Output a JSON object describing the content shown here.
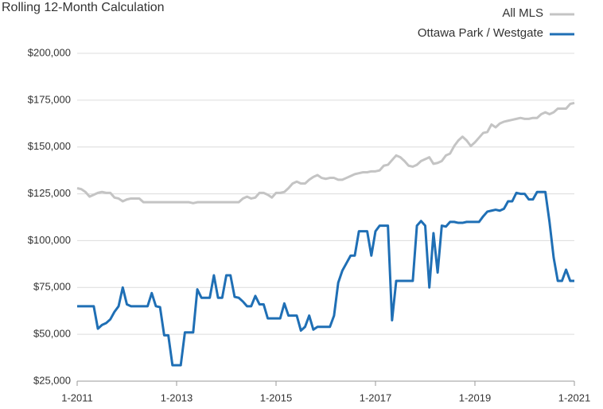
{
  "chart_data": {
    "type": "line",
    "title": "Rolling 12-Month Calculation",
    "x": [
      0,
      1,
      2,
      3,
      4,
      5,
      6,
      7,
      8,
      9,
      10,
      11,
      12,
      13,
      14,
      15,
      16,
      17,
      18,
      19,
      20,
      21,
      22,
      23,
      24,
      25,
      26,
      27,
      28,
      29,
      30,
      31,
      32,
      33,
      34,
      35,
      36,
      37,
      38,
      39,
      40,
      41,
      42,
      43,
      44,
      45,
      46,
      47,
      48,
      49,
      50,
      51,
      52,
      53,
      54,
      55,
      56,
      57,
      58,
      59,
      60,
      61,
      62,
      63,
      64,
      65,
      66,
      67,
      68,
      69,
      70,
      71,
      72,
      73,
      74,
      75,
      76,
      77,
      78,
      79,
      80,
      81,
      82,
      83,
      84,
      85,
      86,
      87,
      88,
      89,
      90,
      91,
      92,
      93,
      94,
      95,
      96,
      97,
      98,
      99,
      100,
      101,
      102,
      103,
      104,
      105,
      106,
      107,
      108,
      109,
      110,
      111,
      112,
      113,
      114,
      115,
      116,
      117,
      118,
      119,
      120
    ],
    "series": [
      {
        "name": "All MLS",
        "color": "#c4c4c4",
        "values": [
          128000,
          127500,
          126000,
          123500,
          124500,
          125500,
          126000,
          125500,
          125500,
          123000,
          122500,
          121000,
          122000,
          122500,
          122500,
          122500,
          120500,
          120500,
          120500,
          120500,
          120500,
          120500,
          120500,
          120500,
          120500,
          120500,
          120500,
          120500,
          120000,
          120500,
          120500,
          120500,
          120500,
          120500,
          120500,
          120500,
          120500,
          120500,
          120500,
          120500,
          122500,
          123500,
          122500,
          123000,
          125500,
          125500,
          124500,
          123000,
          125500,
          125500,
          126000,
          128000,
          130500,
          131500,
          130500,
          130500,
          132500,
          134000,
          135000,
          133500,
          133000,
          133500,
          133500,
          132500,
          132500,
          133500,
          134500,
          135500,
          136000,
          136500,
          136500,
          137000,
          137000,
          137500,
          140000,
          140500,
          143000,
          145500,
          144500,
          142500,
          140000,
          139500,
          140500,
          142500,
          143500,
          144500,
          141000,
          141500,
          142500,
          145500,
          146500,
          150500,
          153500,
          155500,
          153500,
          150500,
          152500,
          155000,
          157500,
          158000,
          162000,
          160500,
          162500,
          163500,
          164000,
          164500,
          165000,
          165500,
          165000,
          165000,
          165500,
          165500,
          167500,
          168500,
          167500,
          168500,
          170500,
          170500,
          170500,
          173000,
          173500
        ]
      },
      {
        "name": "Ottawa Park / Westgate",
        "color": "#1f6fb5",
        "values": [
          65000,
          65000,
          65000,
          65000,
          65000,
          53000,
          55000,
          56000,
          58000,
          62000,
          65000,
          75000,
          66000,
          65000,
          65000,
          65000,
          65000,
          65000,
          72000,
          65000,
          64500,
          49500,
          49500,
          33500,
          33500,
          33500,
          51000,
          51000,
          51000,
          74000,
          69500,
          69500,
          69500,
          81500,
          69500,
          69500,
          81500,
          81500,
          70000,
          69500,
          67500,
          65000,
          65000,
          70500,
          66000,
          66000,
          58500,
          58500,
          58500,
          58500,
          66500,
          60000,
          60000,
          60000,
          52000,
          54000,
          60000,
          52500,
          54000,
          54000,
          54000,
          54000,
          60000,
          77500,
          84000,
          88000,
          92000,
          92000,
          105000,
          105000,
          105000,
          92000,
          105000,
          108000,
          108000,
          108000,
          57500,
          78500,
          78500,
          78500,
          78500,
          78500,
          108000,
          110500,
          108000,
          75000,
          104000,
          83000,
          108000,
          107500,
          110000,
          110000,
          109500,
          109500,
          110000,
          110000,
          110000,
          110000,
          113000,
          115500,
          116000,
          116500,
          116000,
          117000,
          121000,
          121000,
          125500,
          125000,
          125000,
          122000,
          122000,
          126000,
          126000,
          126000,
          110000,
          91000,
          78500,
          78500,
          84500,
          78500,
          78500
        ]
      }
    ],
    "xlim": [
      0,
      120
    ],
    "xticks": [
      {
        "value": 0,
        "label": "1-2011"
      },
      {
        "value": 24,
        "label": "1-2013"
      },
      {
        "value": 48,
        "label": "1-2015"
      },
      {
        "value": 72,
        "label": "1-2017"
      },
      {
        "value": 96,
        "label": "1-2019"
      },
      {
        "value": 120,
        "label": "1-2021"
      }
    ],
    "ylim": [
      25000,
      200000
    ],
    "yticks": [
      {
        "value": 25000,
        "label": "$25,000"
      },
      {
        "value": 50000,
        "label": "$50,000"
      },
      {
        "value": 75000,
        "label": "$75,000"
      },
      {
        "value": 100000,
        "label": "$100,000"
      },
      {
        "value": 125000,
        "label": "$125,000"
      },
      {
        "value": 150000,
        "label": "$150,000"
      },
      {
        "value": 175000,
        "label": "$175,000"
      },
      {
        "value": 200000,
        "label": "$200,000"
      }
    ],
    "grid": true,
    "legend": "top-right"
  }
}
